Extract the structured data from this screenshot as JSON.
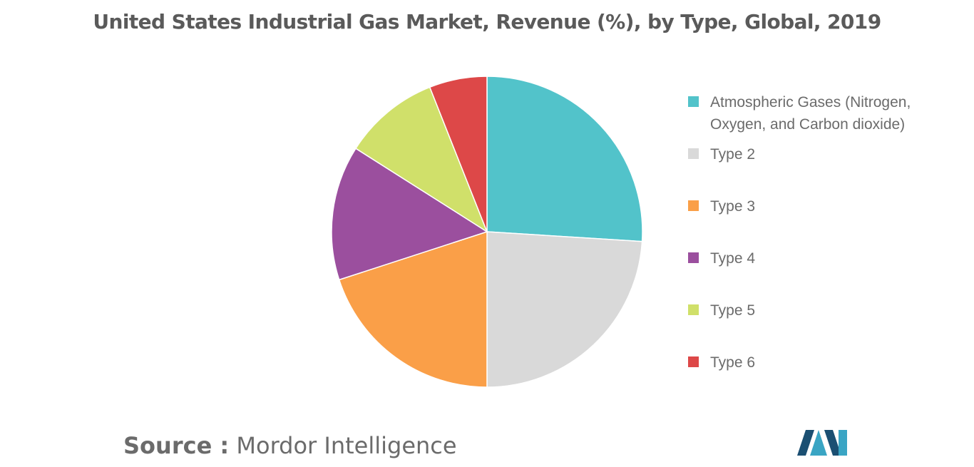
{
  "chart_data": {
    "type": "pie",
    "title": "United States Industrial Gas Market, Revenue (%), by Type, Global, 2019",
    "slices": [
      {
        "label": "Atmospheric Gases (Nitrogen, Oxygen, and Carbon dioxide)",
        "value": 26,
        "color": "#52c3ca"
      },
      {
        "label": "Type 2",
        "value": 24,
        "color": "#d9d9d9"
      },
      {
        "label": "Type 3",
        "value": 20,
        "color": "#fa9f48"
      },
      {
        "label": "Type 4",
        "value": 14,
        "color": "#9b4f9e"
      },
      {
        "label": "Type 5",
        "value": 10,
        "color": "#d0e06a"
      },
      {
        "label": "Type 6",
        "value": 6,
        "color": "#dd4848"
      }
    ],
    "legend_position": "right"
  },
  "source": {
    "key": "Source :",
    "value": "Mordor Intelligence"
  },
  "logo": {
    "icon": "mordor-intelligence-logo",
    "colors": [
      "#1b4f72",
      "#3aa5c4"
    ]
  }
}
